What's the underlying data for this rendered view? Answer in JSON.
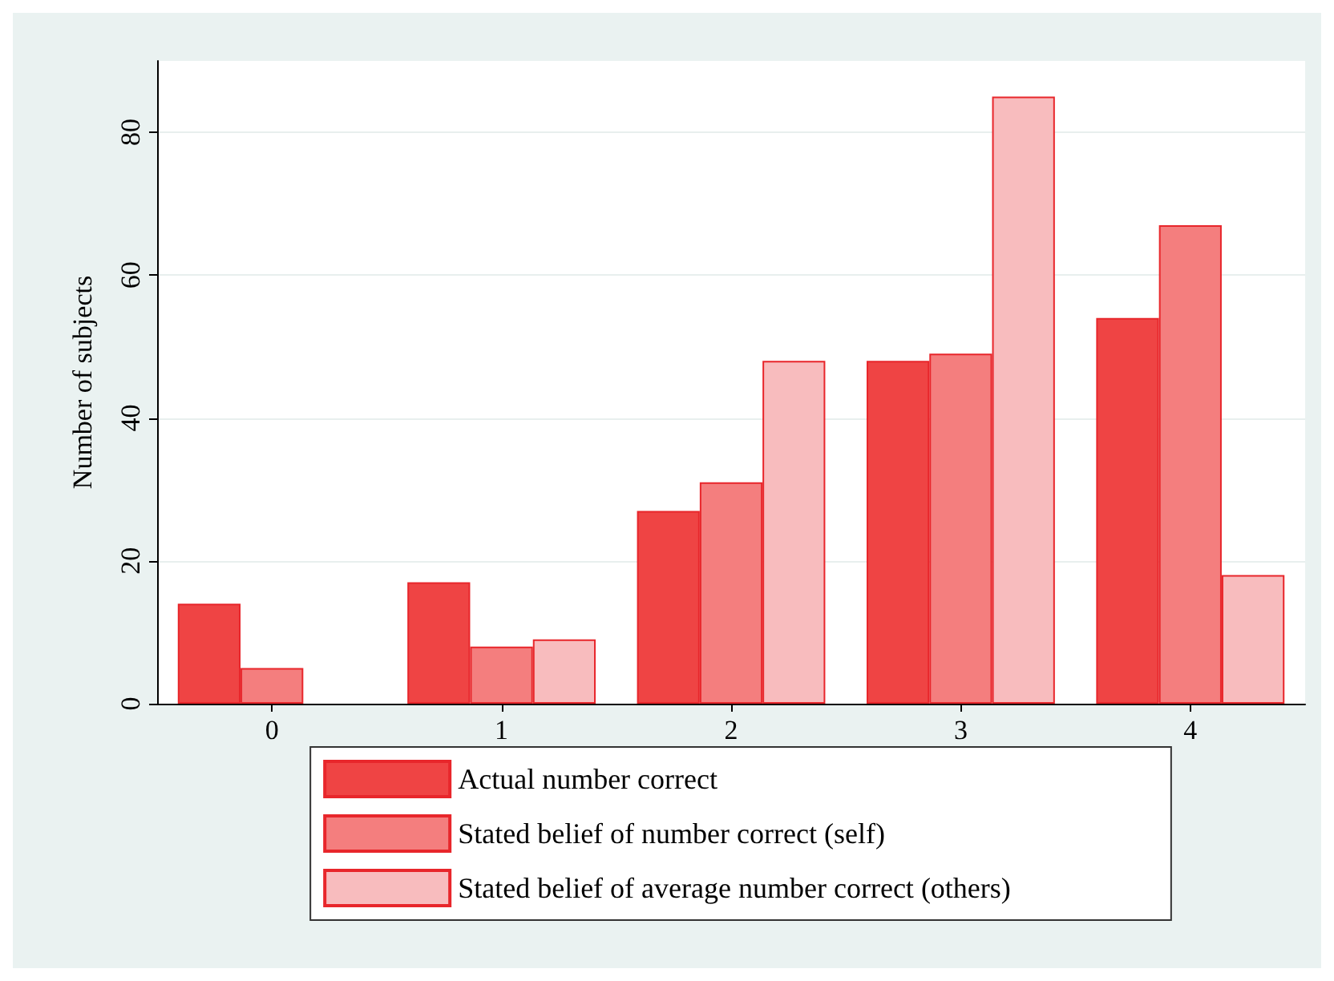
{
  "chart_data": {
    "type": "bar",
    "ylabel": "Number of subjects",
    "categories": [
      "0",
      "1",
      "2",
      "3",
      "4"
    ],
    "series": [
      {
        "name": "Actual number correct",
        "color": "#ef4444",
        "values": [
          14,
          17,
          27,
          48,
          54
        ]
      },
      {
        "name": "Stated belief of number correct (self)",
        "color": "#f47e7e",
        "values": [
          5,
          8,
          31,
          49,
          67
        ]
      },
      {
        "name": "Stated belief of average number correct (others)",
        "color": "#f8bcbe",
        "values": [
          null,
          9,
          48,
          85,
          18
        ]
      }
    ],
    "ylim": [
      0,
      90
    ],
    "yticks": [
      0,
      20,
      40,
      60,
      80
    ],
    "grid": "y",
    "legend": "bottom"
  }
}
